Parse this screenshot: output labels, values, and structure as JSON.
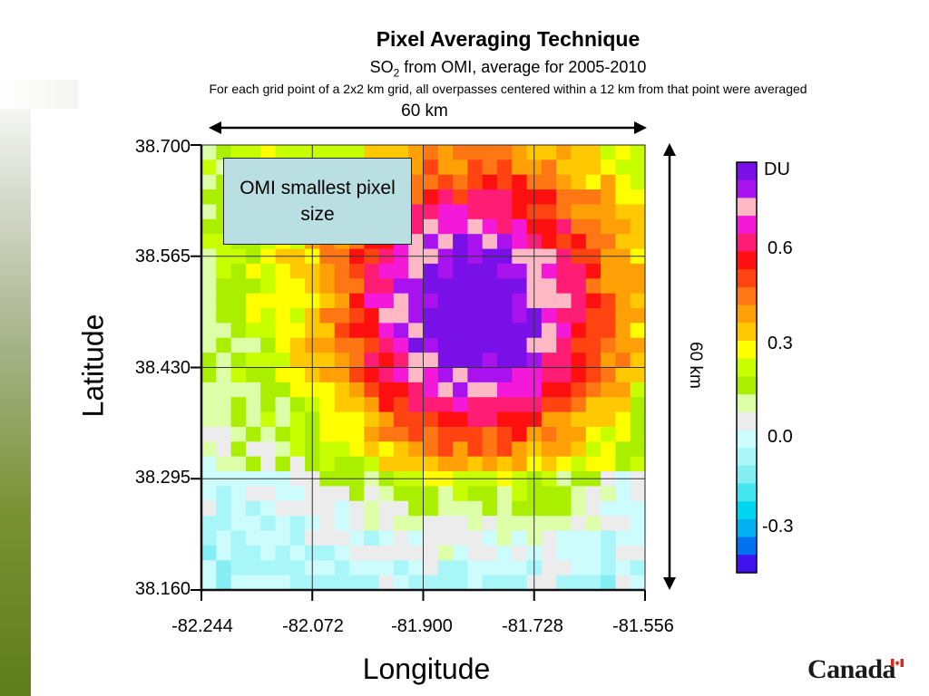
{
  "title": "Pixel Averaging Technique",
  "subtitle_prefix": "SO",
  "subtitle_sub": "2",
  "subtitle_suffix": " from OMI, average for 2005-2010",
  "caption": "For each grid point of a 2x2 km grid, all overpasses centered within a 12 km from that point were averaged",
  "km_top": "60 km",
  "km_side": "60 km",
  "callout": "OMI smallest pixel size",
  "logo_text": "Canada",
  "chart_data": {
    "type": "heatmap",
    "xlabel": "Longitude",
    "ylabel": "Latitude",
    "x_ticks": [
      "-82.244",
      "-82.072",
      "-81.900",
      "-81.728",
      "-81.556"
    ],
    "y_ticks": [
      "38.700",
      "38.565",
      "38.430",
      "38.295",
      "38.160"
    ],
    "xlim": [
      -82.244,
      -81.556
    ],
    "ylim": [
      38.16,
      38.7
    ],
    "grid": true,
    "colorbar": {
      "unit": "DU",
      "ticks": [
        "0.6",
        "0.3",
        "0.0",
        "-0.3"
      ],
      "range": [
        -0.4,
        0.8
      ],
      "colors": [
        "#7a10e8",
        "#a812ee",
        "#ffb8c4",
        "#f418d8",
        "#ff1c74",
        "#ff1010",
        "#ff4412",
        "#ff7614",
        "#ffa006",
        "#ffc800",
        "#ffff00",
        "#c8ff00",
        "#aaee00",
        "#dcffa8",
        "#ececec",
        "#ccfcfc",
        "#a8f6f8",
        "#84eef4",
        "#44e6ee",
        "#00d6f0",
        "#00b0f2",
        "#0072f0",
        "#4010ee"
      ]
    },
    "source_center": [
      -81.82,
      38.49
    ],
    "peak_value": 0.75,
    "grid_resolution": "2x2 km"
  }
}
